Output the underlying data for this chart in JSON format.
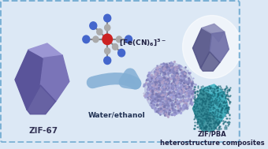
{
  "bg_color": "#dce8f5",
  "border_color": "#7ab0d4",
  "label_zif": "ZIF-67",
  "label_solvent": "Water/ethanol",
  "label_product": "ZIF/PBA\nheterostructure composites",
  "zif_color_light": "#9b96d4",
  "zif_color_mid": "#7a74b8",
  "zif_color_dark": "#5a549a",
  "pba_top_light": "#9090bb",
  "pba_top_mid": "#7070a8",
  "pba_top_dark": "#555588",
  "teal_dark": "#2d8a96",
  "teal_light": "#4ab8c8",
  "teal_mid": "#38a8b8",
  "arrow_color": "#82aed4",
  "fig_width": 3.4,
  "fig_height": 1.89
}
